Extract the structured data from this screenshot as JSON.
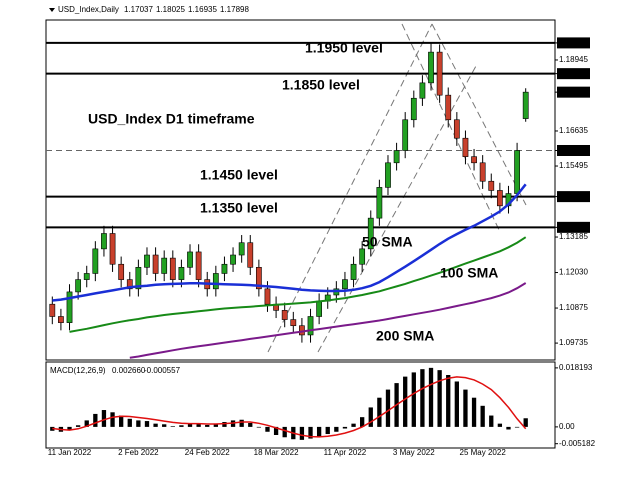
{
  "chart_data": [
    {
      "type": "candlestick",
      "symbol": "USD_Index,Daily",
      "title": "USD_Index D1 timeframe",
      "categories": [
        null,
        null,
        "11 Jan 2022",
        null,
        null,
        null,
        null,
        null,
        null,
        null,
        "2 Feb 2022",
        null,
        null,
        null,
        null,
        null,
        null,
        null,
        "24 Feb 2022",
        null,
        null,
        null,
        null,
        null,
        null,
        null,
        "18 Mar 2022",
        null,
        null,
        null,
        null,
        null,
        null,
        null,
        "11 Apr 2022",
        null,
        null,
        null,
        null,
        null,
        null,
        null,
        "3 May 2022",
        null,
        null,
        null,
        null,
        null,
        null,
        null,
        "25 May 2022",
        null,
        null,
        null,
        null,
        null
      ],
      "open": [
        1.11,
        1.106,
        1.104,
        1.114,
        1.118,
        1.12,
        1.128,
        1.133,
        1.123,
        1.118,
        1.115,
        1.122,
        1.126,
        1.12,
        1.125,
        1.118,
        1.122,
        1.127,
        1.118,
        1.115,
        1.12,
        1.123,
        1.126,
        1.13,
        1.122,
        1.115,
        1.11,
        1.108,
        1.105,
        1.103,
        1.1,
        1.106,
        1.111,
        1.113,
        1.115,
        1.118,
        1.123,
        1.128,
        1.138,
        1.148,
        1.156,
        1.16,
        1.17,
        1.177,
        1.182,
        1.192,
        1.178,
        1.17,
        1.164,
        1.158,
        1.156,
        1.15,
        1.147,
        1.142,
        1.146,
        1.17037
      ],
      "high": [
        1.1125,
        1.1085,
        1.1165,
        1.1205,
        1.1225,
        1.1305,
        1.1355,
        1.1355,
        1.1255,
        1.1205,
        1.1245,
        1.1285,
        1.1285,
        1.1275,
        1.1275,
        1.1245,
        1.1295,
        1.1295,
        1.1205,
        1.1225,
        1.1255,
        1.1285,
        1.1325,
        1.1325,
        1.1245,
        1.1175,
        1.1125,
        1.1105,
        1.1075,
        1.1055,
        1.1085,
        1.1135,
        1.1155,
        1.1175,
        1.1205,
        1.1255,
        1.1305,
        1.1405,
        1.1505,
        1.1585,
        1.1625,
        1.1725,
        1.1795,
        1.1845,
        1.195,
        1.1945,
        1.1805,
        1.1725,
        1.1665,
        1.1605,
        1.1585,
        1.1525,
        1.1495,
        1.1485,
        1.1625,
        1.18025
      ],
      "low": [
        1.1035,
        1.1015,
        1.1015,
        1.1115,
        1.1155,
        1.1175,
        1.1255,
        1.1205,
        1.1155,
        1.1125,
        1.1125,
        1.1195,
        1.1175,
        1.1175,
        1.1155,
        1.1155,
        1.1195,
        1.1155,
        1.1125,
        1.1125,
        1.1175,
        1.1205,
        1.1235,
        1.1195,
        1.1125,
        1.1075,
        1.1055,
        1.1025,
        1.1005,
        1.0975,
        1.0975,
        1.1035,
        1.1085,
        1.1105,
        1.1125,
        1.1155,
        1.1205,
        1.1255,
        1.1355,
        1.1455,
        1.1535,
        1.1575,
        1.1675,
        1.1745,
        1.1795,
        1.1755,
        1.1675,
        1.1615,
        1.1555,
        1.1535,
        1.1475,
        1.1445,
        1.1395,
        1.1395,
        1.1435,
        1.16935
      ],
      "close": [
        1.106,
        1.104,
        1.114,
        1.118,
        1.12,
        1.128,
        1.133,
        1.123,
        1.118,
        1.115,
        1.122,
        1.126,
        1.12,
        1.125,
        1.118,
        1.122,
        1.127,
        1.118,
        1.115,
        1.12,
        1.123,
        1.126,
        1.13,
        1.122,
        1.115,
        1.11,
        1.108,
        1.105,
        1.103,
        1.1,
        1.106,
        1.111,
        1.113,
        1.115,
        1.118,
        1.123,
        1.128,
        1.138,
        1.148,
        1.156,
        1.16,
        1.17,
        1.177,
        1.182,
        1.192,
        1.178,
        1.17,
        1.164,
        1.158,
        1.156,
        1.15,
        1.147,
        1.142,
        1.146,
        1.16,
        1.17898
      ],
      "up_color": "#22a022",
      "down_color": "#c8402c",
      "ylim": [
        1.0925,
        1.2018
      ],
      "yticks": [
        {
          "value": 1.195,
          "label": "1.19500",
          "boxed": true
        },
        {
          "value": 1.18945,
          "label": "1.18945"
        },
        {
          "value": 1.185,
          "label": "1.18500",
          "boxed": true
        },
        {
          "value": 1.17898,
          "label": "1.17898",
          "boxed": true
        },
        {
          "value": 1.16635,
          "label": "1.16635"
        },
        {
          "value": 1.16,
          "label": "1.16000",
          "boxed": true
        },
        {
          "value": 1.15495,
          "label": "1.15495"
        },
        {
          "value": 1.145,
          "label": "1.14500",
          "boxed": true
        },
        {
          "value": 1.135,
          "label": "1.13500",
          "boxed": true
        },
        {
          "value": 1.13185,
          "label": "1.13185"
        },
        {
          "value": 1.1203,
          "label": "1.12030"
        },
        {
          "value": 1.10875,
          "label": "1.10875"
        },
        {
          "value": 1.09735,
          "label": "1.09735"
        }
      ],
      "levels": [
        {
          "value": 1.195,
          "label": "1.1950 level"
        },
        {
          "value": 1.185,
          "label": "1.1850 level"
        },
        {
          "value": 1.145,
          "label": "1.1450 level"
        },
        {
          "value": 1.135,
          "label": "1.1350 level"
        }
      ],
      "dashed_level": 1.16,
      "series": [
        {
          "name": "50 SMA",
          "color": "#1a2fd6",
          "values": [
            1.1112,
            1.1115,
            1.112,
            1.1125,
            1.113,
            1.1135,
            1.114,
            1.1145,
            1.115,
            1.1155,
            1.1158,
            1.116,
            1.1163,
            1.1165,
            1.1166,
            1.1167,
            1.1168,
            1.1168,
            1.1167,
            1.1166,
            1.1165,
            1.1164,
            1.1163,
            1.1162,
            1.116,
            1.1158,
            1.1156,
            1.1153,
            1.115,
            1.1147,
            1.1145,
            1.1144,
            1.1143,
            1.1143,
            1.1144,
            1.1147,
            1.1152,
            1.116,
            1.1172,
            1.1188,
            1.1205,
            1.1222,
            1.124,
            1.1258,
            1.1277,
            1.1296,
            1.1313,
            1.1328,
            1.1342,
            1.1355,
            1.137,
            1.1385,
            1.1402,
            1.1425,
            1.1455,
            1.149
          ]
        },
        {
          "name": "100 SMA",
          "color": "#178a17",
          "values": [
            null,
            null,
            1.101,
            1.1015,
            1.102,
            1.1026,
            1.1032,
            1.1038,
            1.1043,
            1.1048,
            1.1052,
            1.1057,
            1.1061,
            1.1065,
            1.1068,
            1.1071,
            1.1074,
            1.1077,
            1.108,
            1.1083,
            1.1086,
            1.1088,
            1.109,
            1.1092,
            1.1094,
            1.1096,
            1.1098,
            1.11,
            1.1102,
            1.1104,
            1.1106,
            1.1109,
            1.1112,
            1.1116,
            1.112,
            1.1125,
            1.113,
            1.1136,
            1.1142,
            1.115,
            1.1158,
            1.1166,
            1.1175,
            1.1184,
            1.1193,
            1.1202,
            1.1212,
            1.1222,
            1.1232,
            1.1242,
            1.1252,
            1.1262,
            1.1272,
            1.1285,
            1.13,
            1.1318
          ]
        },
        {
          "name": "200 SMA",
          "color": "#7a1a8a",
          "values": [
            null,
            null,
            null,
            null,
            null,
            null,
            null,
            null,
            null,
            1.0926,
            1.093,
            1.0935,
            1.094,
            1.0945,
            1.095,
            1.0955,
            1.0959,
            1.0963,
            1.0967,
            1.0971,
            1.0975,
            1.0979,
            1.0983,
            1.0987,
            1.0991,
            1.0995,
            1.0999,
            1.1003,
            1.1007,
            1.1011,
            1.1015,
            1.1019,
            1.1023,
            1.1027,
            1.1031,
            1.1035,
            1.1039,
            1.1043,
            1.1047,
            1.1052,
            1.1057,
            1.1062,
            1.1067,
            1.1072,
            1.1077,
            1.1082,
            1.1088,
            1.1094,
            1.11,
            1.1106,
            1.1113,
            1.112,
            1.1128,
            1.1138,
            1.1152,
            1.1169
          ]
        }
      ]
    },
    {
      "type": "macd",
      "indicator": "MACD(12,26,9)",
      "readout": [
        {
          "value": 0.00266,
          "label": "0.002660"
        },
        {
          "value": -0.000557,
          "label": "-0.000557"
        }
      ],
      "histogram": {
        "color": "#000000",
        "values": [
          -0.0012,
          -0.0015,
          -0.001,
          0.0005,
          0.002,
          0.004,
          0.0052,
          0.0045,
          0.0035,
          0.0025,
          0.002,
          0.0018,
          0.001,
          0.0008,
          0.0002,
          0.0005,
          0.0012,
          0.001,
          0.0006,
          0.001,
          0.0015,
          0.002,
          0.0022,
          0.0012,
          -0.0002,
          -0.0015,
          -0.0025,
          -0.0032,
          -0.0038,
          -0.004,
          -0.0036,
          -0.003,
          -0.0022,
          -0.0015,
          -0.0005,
          0.001,
          0.003,
          0.006,
          0.009,
          0.0115,
          0.0135,
          0.0155,
          0.0168,
          0.0178,
          0.0182,
          0.0175,
          0.016,
          0.014,
          0.0115,
          0.009,
          0.0065,
          0.0035,
          0.001,
          -0.0008,
          -0.0002,
          0.00266
        ]
      },
      "signal": {
        "color": "#e01010",
        "values": [
          -0.0005,
          -0.0008,
          -0.001,
          -0.0006,
          0.0002,
          0.0012,
          0.0022,
          0.003,
          0.0033,
          0.0032,
          0.0029,
          0.0026,
          0.0022,
          0.0018,
          0.0014,
          0.0011,
          0.001,
          0.001,
          0.0009,
          0.0009,
          0.001,
          0.0012,
          0.0015,
          0.0015,
          0.0011,
          0.0005,
          -0.0003,
          -0.0011,
          -0.0019,
          -0.0026,
          -0.003,
          -0.0031,
          -0.0029,
          -0.0025,
          -0.0019,
          -0.0011,
          0.0,
          0.0015,
          0.0032,
          0.005,
          0.0068,
          0.0086,
          0.0103,
          0.0118,
          0.0131,
          0.0142,
          0.015,
          0.0154,
          0.0152,
          0.0145,
          0.0132,
          0.0115,
          0.009,
          0.006,
          0.0025,
          -0.000557
        ]
      },
      "ylim": [
        -0.0062,
        0.0197
      ],
      "yticks": [
        0.018193,
        {
          "value": 0,
          "label": "0.00"
        },
        -0.005182
      ]
    }
  ]
}
